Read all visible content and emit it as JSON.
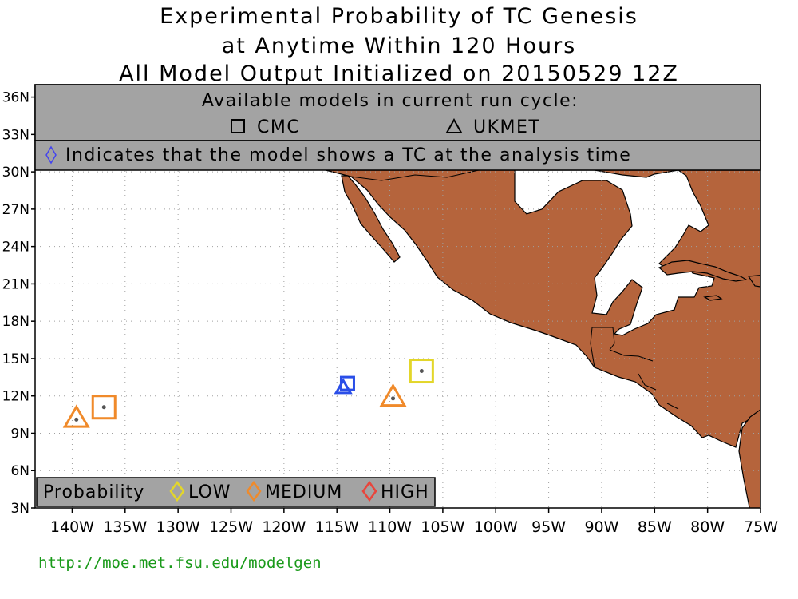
{
  "title": {
    "line1": "Experimental Probability of TC Genesis",
    "line2": "at Anytime Within 120 Hours",
    "line3": "All Model Output Initialized on 20150529 12Z"
  },
  "header_box": {
    "available_label": "Available models in current run cycle:",
    "models": [
      {
        "symbol": "square",
        "name": "CMC"
      },
      {
        "symbol": "triangle",
        "name": "UKMET"
      }
    ],
    "analysis_note": "Indicates that the model shows a TC at the analysis time"
  },
  "legend": {
    "title": "Probability",
    "levels": [
      {
        "label": "LOW",
        "color": "#e3d62a"
      },
      {
        "label": "MEDIUM",
        "color": "#f08a2a"
      },
      {
        "label": "HIGH",
        "color": "#e8453c"
      }
    ]
  },
  "axes": {
    "lat_ticks": [
      "36N",
      "33N",
      "30N",
      "27N",
      "24N",
      "21N",
      "18N",
      "15N",
      "12N",
      "9N",
      "6N",
      "3N"
    ],
    "lon_ticks": [
      "140W",
      "135W",
      "130W",
      "125W",
      "120W",
      "115W",
      "110W",
      "105W",
      "100W",
      "95W",
      "90W",
      "85W",
      "80W",
      "75W"
    ],
    "lon_range": [
      -143.5,
      -75
    ],
    "lat_range": [
      3,
      37
    ]
  },
  "colors": {
    "land": "#b5643c",
    "header_gray": "#a3a3a3",
    "analysis_symbol": "#4444ee"
  },
  "genesis_points": [
    {
      "model": "UKMET",
      "shape": "triangle",
      "lon": -139.6,
      "lat": 10.1,
      "probability": "MEDIUM",
      "color": "#f08a2a"
    },
    {
      "model": "CMC",
      "shape": "square",
      "lon": -137.0,
      "lat": 11.1,
      "probability": "MEDIUM",
      "color": "#f08a2a"
    },
    {
      "model": "UKMET",
      "shape": "triangle",
      "lon": -114.4,
      "lat": 12.6,
      "probability": "analysis",
      "color": "#2a4ee8"
    },
    {
      "model": "CMC",
      "shape": "square",
      "lon": -114.0,
      "lat": 13.0,
      "probability": "analysis",
      "color": "#2a4ee8"
    },
    {
      "model": "UKMET",
      "shape": "triangle",
      "lon": -109.7,
      "lat": 11.8,
      "probability": "MEDIUM",
      "color": "#f08a2a"
    },
    {
      "model": "CMC",
      "shape": "square",
      "lon": -107.0,
      "lat": 14.0,
      "probability": "LOW",
      "color": "#e3d62a"
    }
  ],
  "footer_url": "http://moe.met.fsu.edu/modelgen"
}
